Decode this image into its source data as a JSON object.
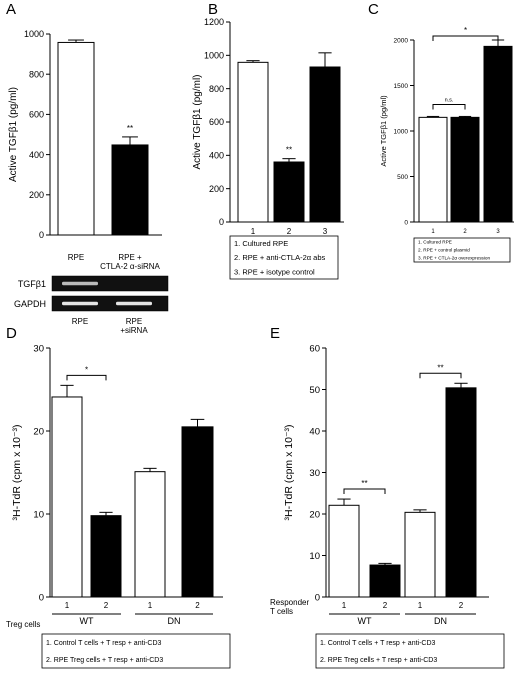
{
  "chart_data": [
    {
      "panel_letter": "A",
      "type": "bar",
      "categories": [
        "RPE",
        "RPE +\nCTLA-2 α-siRNA"
      ],
      "values": [
        958,
        448
      ],
      "errors": [
        12,
        40
      ],
      "colors": [
        "#ffffff",
        "#000000"
      ],
      "sig": [
        "",
        "**"
      ],
      "ylabel": "Active TGFβ1 (pg/ml)",
      "ylim": [
        0,
        1000
      ],
      "yticks": [
        0,
        200,
        400,
        600,
        800,
        1000
      ],
      "gel": {
        "rows": [
          "TGFβ1",
          "GAPDH"
        ],
        "lanes": [
          "RPE",
          "RPE\n+siRNA"
        ]
      }
    },
    {
      "panel_letter": "B",
      "type": "bar",
      "categories": [
        "1",
        "2",
        "3"
      ],
      "values": [
        958,
        360,
        930
      ],
      "errors": [
        10,
        20,
        85
      ],
      "colors": [
        "#ffffff",
        "#000000",
        "#000000"
      ],
      "sig": [
        "",
        "**",
        ""
      ],
      "ylabel": "Active TGFβ1 (pg/ml)",
      "ylim": [
        0,
        1200
      ],
      "yticks": [
        0,
        200,
        400,
        600,
        800,
        1000,
        1200
      ],
      "legend": [
        "1. Cultured RPE",
        "2. RPE + anti-CTLA-2α abs",
        "3. RPE + isotype control"
      ]
    },
    {
      "panel_letter": "C",
      "type": "bar",
      "categories": [
        "1",
        "2",
        "3"
      ],
      "values": [
        1150,
        1150,
        1930
      ],
      "errors": [
        10,
        10,
        70
      ],
      "colors": [
        "#ffffff",
        "#000000",
        "#000000"
      ],
      "brackets": [
        {
          "from": 0,
          "to": 1,
          "label": "n.s."
        },
        {
          "from": 0,
          "to": 2,
          "label": "*"
        }
      ],
      "ylabel": "Active TGFβ1 (pg/ml)",
      "ylim": [
        0,
        2000
      ],
      "yticks": [
        0,
        500,
        1000,
        1500,
        2000
      ],
      "legend": [
        "1. Cultured RPE",
        "2. RPE + control plasmid",
        "3. RPE + CTLA-2α overexpression"
      ]
    },
    {
      "panel_letter": "D",
      "type": "bar",
      "categories": [
        "1",
        "2",
        "1",
        "2"
      ],
      "groups": [
        "WT",
        "DN"
      ],
      "values": [
        24.1,
        9.8,
        15.1,
        20.5
      ],
      "errors": [
        1.4,
        0.4,
        0.4,
        0.9
      ],
      "colors": [
        "#ffffff",
        "#000000",
        "#ffffff",
        "#000000"
      ],
      "brackets": [
        {
          "from": 0,
          "to": 1,
          "label": "*"
        }
      ],
      "ylabel": "³H-TdR (cpm x 10⁻³)",
      "ylim": [
        0,
        30
      ],
      "yticks": [
        0,
        10,
        20,
        30
      ],
      "xlabel": "Treg cells",
      "legend": [
        "1. Control T cells + T resp + anti-CD3",
        "2. RPE Treg cells + T resp + anti-CD3"
      ]
    },
    {
      "panel_letter": "E",
      "type": "bar",
      "categories": [
        "1",
        "2",
        "1",
        "2"
      ],
      "groups": [
        "WT",
        "DN"
      ],
      "values": [
        22.1,
        7.7,
        20.4,
        50.4
      ],
      "errors": [
        1.5,
        0.4,
        0.6,
        1.1
      ],
      "colors": [
        "#ffffff",
        "#000000",
        "#ffffff",
        "#000000"
      ],
      "brackets": [
        {
          "from": 0,
          "to": 1,
          "label": "**"
        },
        {
          "from": 2,
          "to": 3,
          "label": "**"
        }
      ],
      "ylabel": "³H-TdR (cpm x 10⁻³)",
      "ylim": [
        0,
        60
      ],
      "yticks": [
        0,
        10,
        20,
        30,
        40,
        50,
        60
      ],
      "xlabel": "Responder\nT cells",
      "legend": [
        "1. Control T cells + T resp + anti-CD3",
        "2. RPE Treg cells + T resp + anti-CD3"
      ]
    }
  ]
}
